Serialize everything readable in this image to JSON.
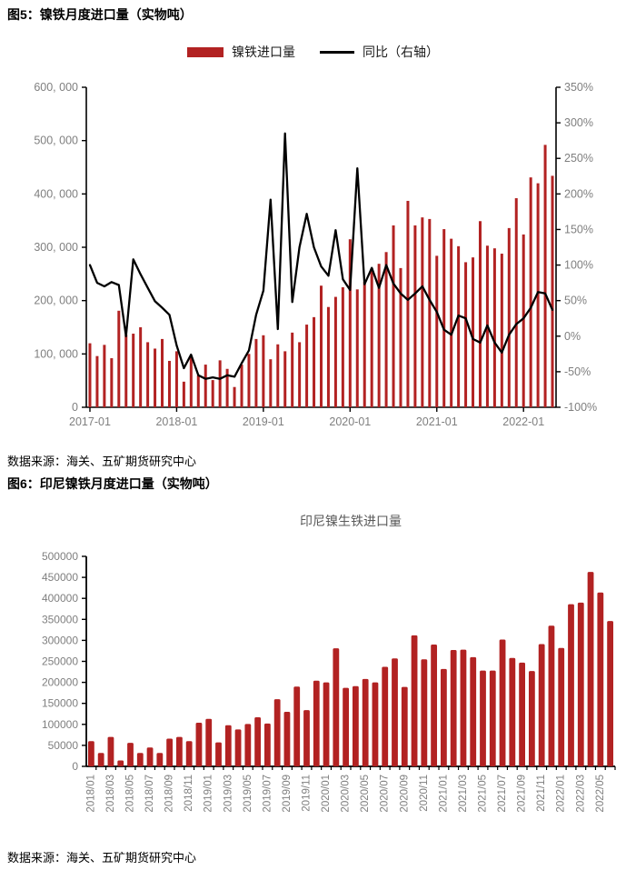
{
  "figure5": {
    "title": "图5：镍铁月度进口量（实物吨）",
    "source": "数据来源：海关、五矿期货研究中心",
    "legend": {
      "bar_label": "镍铁进口量",
      "line_label": "同比（右轴）"
    }
  },
  "figure6": {
    "title": "图6：印尼镍铁月度进口量（实物吨）",
    "source": "数据来源：海关、五矿期货研究中心"
  },
  "chart_data": [
    {
      "type": "bar",
      "title": "镍铁月度进口量（实物吨）",
      "x_start": "2017-01",
      "x_freq": "monthly",
      "x_tick_labels": [
        "2017-01",
        "2018-01",
        "2019-01",
        "2020-01",
        "2021-01",
        "2022-01"
      ],
      "left_axis": {
        "min": 0,
        "max": 600000,
        "step": 100000,
        "tick_labels": [
          "0",
          "100, 000",
          "200, 000",
          "300, 000",
          "400, 000",
          "500, 000",
          "600, 000"
        ]
      },
      "right_axis": {
        "min": -100,
        "max": 350,
        "step": 50,
        "tick_labels": [
          "-100%",
          "-50%",
          "0%",
          "50%",
          "100%",
          "150%",
          "200%",
          "250%",
          "300%",
          "350%"
        ]
      },
      "legend_position": "top",
      "grid": false,
      "series": [
        {
          "name": "镍铁进口量",
          "kind": "bar",
          "axis": "left",
          "color": "#B22222",
          "values": [
            120000,
            96000,
            117000,
            92000,
            181000,
            136000,
            138000,
            150000,
            122000,
            110000,
            128000,
            87000,
            105000,
            48000,
            97000,
            60000,
            80000,
            51000,
            88000,
            72000,
            38000,
            80000,
            100000,
            128000,
            135000,
            90000,
            118000,
            105000,
            140000,
            122000,
            155000,
            169000,
            228000,
            188000,
            207000,
            225000,
            315000,
            221000,
            235000,
            261000,
            269000,
            291000,
            341000,
            261000,
            387000,
            341000,
            356000,
            353000,
            284000,
            334000,
            316000,
            302000,
            272000,
            281000,
            349000,
            303000,
            298000,
            288000,
            336000,
            392000,
            324000,
            431000,
            420000,
            492000,
            434000
          ]
        },
        {
          "name": "同比（右轴）",
          "kind": "line",
          "axis": "right",
          "color": "#000000",
          "unit": "%",
          "values": [
            100,
            75,
            70,
            76,
            72,
            0,
            108,
            87,
            68,
            49,
            40,
            30,
            -13,
            -45,
            -26,
            -55,
            -60,
            -58,
            -60,
            -55,
            -57,
            -38,
            -20,
            30,
            64,
            192,
            10,
            285,
            48,
            125,
            172,
            125,
            98,
            85,
            149,
            80,
            65,
            236,
            73,
            96,
            68,
            100,
            74,
            60,
            51,
            60,
            70,
            51,
            34,
            9,
            2,
            29,
            25,
            -4,
            -9,
            15,
            -9,
            -23,
            2,
            17,
            25,
            40,
            62,
            60,
            37
          ]
        }
      ]
    },
    {
      "type": "bar",
      "title": "印尼镍生铁进口量",
      "x_start": "2018/01",
      "x_freq": "monthly",
      "x_tick_labels": [
        "2018/01",
        "2018/03",
        "2018/05",
        "2018/07",
        "2018/09",
        "2018/11",
        "2019/01",
        "2019/03",
        "2019/05",
        "2019/07",
        "2019/09",
        "2019/11",
        "2020/01",
        "2020/03",
        "2020/05",
        "2020/07",
        "2020/09",
        "2020/11",
        "2021/01",
        "2021/03",
        "2021/05",
        "2021/07",
        "2021/09",
        "2021/11",
        "2022/01",
        "2022/03",
        "2022/05"
      ],
      "ylabel": "",
      "y_axis": {
        "min": 0,
        "max": 500000,
        "step": 50000,
        "tick_labels": [
          "0",
          "50000",
          "100000",
          "150000",
          "200000",
          "250000",
          "300000",
          "350000",
          "400000",
          "450000",
          "500000"
        ]
      },
      "grid": false,
      "series": [
        {
          "name": "印尼镍生铁进口量",
          "kind": "bar",
          "color": "#B22222",
          "values": [
            60000,
            32000,
            70000,
            14000,
            56000,
            32000,
            45000,
            32000,
            66000,
            70000,
            60000,
            104000,
            113000,
            57000,
            98000,
            88000,
            101000,
            117000,
            102000,
            160000,
            130000,
            190000,
            134000,
            204000,
            200000,
            281000,
            187000,
            191000,
            208000,
            200000,
            237000,
            257000,
            189000,
            312000,
            255000,
            290000,
            232000,
            277000,
            278000,
            260000,
            228000,
            228000,
            302000,
            258000,
            247000,
            227000,
            291000,
            335000,
            282000,
            386000,
            390000,
            463000,
            414000,
            346000
          ]
        }
      ]
    }
  ],
  "colors": {
    "bar_red": "#B22222",
    "line_black": "#000000",
    "axis_text": "#7f7f7f",
    "chart_title_gray": "#595959"
  }
}
